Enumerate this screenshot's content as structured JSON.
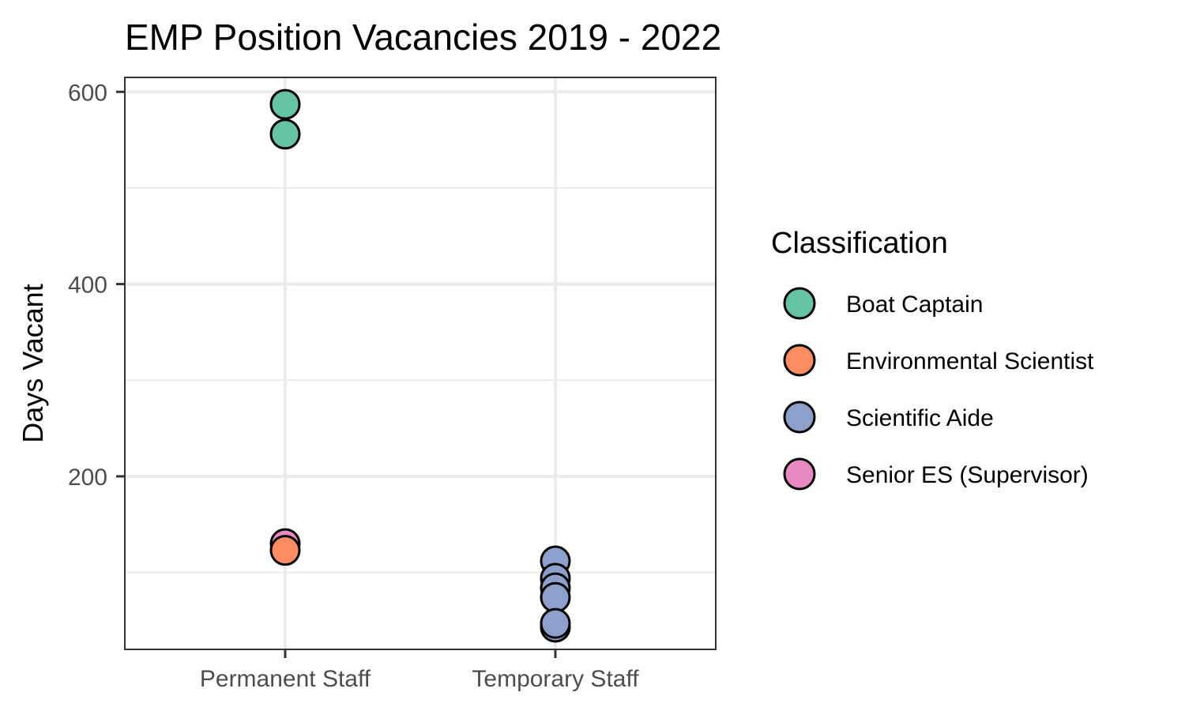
{
  "chart_data": {
    "type": "scatter",
    "title": "EMP Position Vacancies 2019 - 2022",
    "xlabel": "",
    "ylabel": "Days Vacant",
    "categories": [
      "Permanent Staff",
      "Temporary Staff"
    ],
    "ylim": [
      20,
      615
    ],
    "yticks": [
      200,
      400,
      600
    ],
    "grid": true,
    "legend": {
      "title": "Classification",
      "position": "right"
    },
    "series": [
      {
        "name": "Boat Captain",
        "color": "#66c2a5",
        "points": [
          {
            "x": "Permanent Staff",
            "y": 587
          },
          {
            "x": "Permanent Staff",
            "y": 556
          }
        ]
      },
      {
        "name": "Environmental Scientist",
        "color": "#fc8d62",
        "points": [
          {
            "x": "Permanent Staff",
            "y": 123
          }
        ]
      },
      {
        "name": "Scientific Aide",
        "color": "#8da0cb",
        "points": [
          {
            "x": "Temporary Staff",
            "y": 112
          },
          {
            "x": "Temporary Staff",
            "y": 94
          },
          {
            "x": "Temporary Staff",
            "y": 84
          },
          {
            "x": "Temporary Staff",
            "y": 74
          },
          {
            "x": "Temporary Staff",
            "y": 43
          },
          {
            "x": "Temporary Staff",
            "y": 47
          }
        ]
      },
      {
        "name": "Senior ES (Supervisor)",
        "color": "#e78ac3",
        "points": [
          {
            "x": "Permanent Staff",
            "y": 130
          }
        ]
      }
    ]
  }
}
